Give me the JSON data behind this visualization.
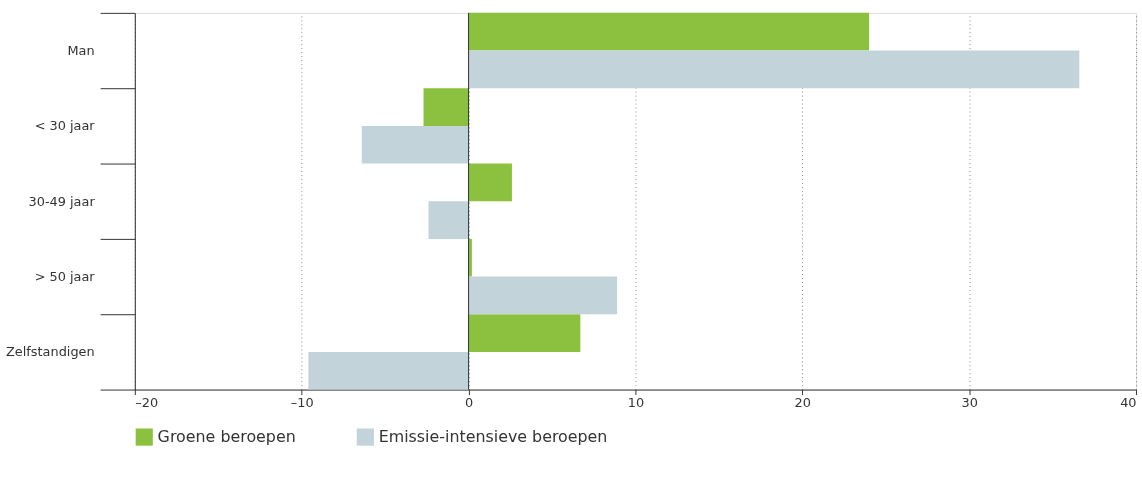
{
  "chart_data": {
    "type": "bar",
    "orientation": "horizontal",
    "categories": [
      "Man",
      "< 30 jaar",
      "30-49 jaar",
      "> 50 jaar",
      "Zelfstandigen"
    ],
    "series": [
      {
        "name": "Groene beroepen",
        "color": "#8cc13f",
        "values": [
          24.0,
          -2.7,
          2.6,
          0.2,
          6.7
        ]
      },
      {
        "name": "Emissie-intensieve beroepen",
        "color": "#c3d3da",
        "values": [
          36.6,
          -6.4,
          -2.4,
          8.9,
          -9.6
        ]
      }
    ],
    "xlim": [
      -20,
      40
    ],
    "xticks": [
      {
        "value": -20,
        "label": "–20"
      },
      {
        "value": -10,
        "label": "–10"
      },
      0,
      10,
      20,
      30,
      40
    ],
    "grid": "x",
    "legend": "bottom"
  }
}
